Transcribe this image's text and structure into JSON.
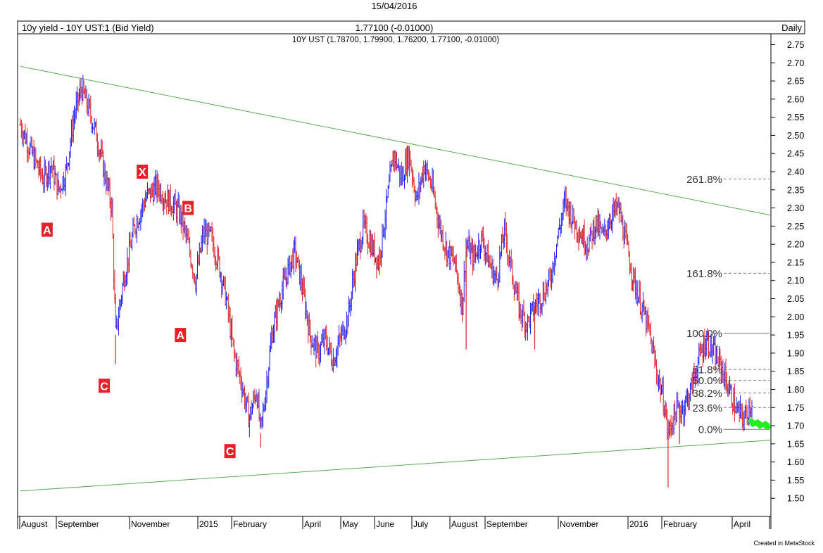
{
  "header": {
    "date": "15/04/2016",
    "instrument": "10y yield - 10Y UST:1 (Bid Yield)",
    "last_value": "1.77100 (-0.01000)",
    "periodicity": "Daily",
    "ohlc_line": "10Y UST (1.78700, 1.79900, 1.76200, 1.77100, -0.01000)"
  },
  "footer": {
    "credit": "Created in MetaStock"
  },
  "colors": {
    "up_bar": "#1a1aff",
    "down_bar": "#e02020",
    "trendline": "#55aa55",
    "fib_line": "#777777",
    "wave_label_bg": "#e8202a",
    "projection_marker": "#22ee22"
  },
  "chart_data": {
    "type": "ohlc-bar",
    "y_axis": {
      "min": 1.45,
      "max": 2.78,
      "ticks": [
        "2.75",
        "2.70",
        "2.65",
        "2.60",
        "2.55",
        "2.50",
        "2.45",
        "2.40",
        "2.35",
        "2.30",
        "2.25",
        "2.20",
        "2.15",
        "2.10",
        "2.05",
        "2.00",
        "1.95",
        "1.90",
        "1.85",
        "1.80",
        "1.75",
        "1.70",
        "1.65",
        "1.60",
        "1.55",
        "1.50"
      ],
      "position": "right"
    },
    "x_axis_labels": [
      "August",
      "September",
      "November",
      "2015",
      "February",
      "April",
      "May",
      "June",
      "July",
      "August",
      "September",
      "November",
      "2016",
      "February",
      "April"
    ],
    "price_path": [
      {
        "t": 0,
        "v": 2.53
      },
      {
        "t": 3,
        "v": 2.45
      },
      {
        "t": 6,
        "v": 2.38
      },
      {
        "t": 8,
        "v": 2.42
      },
      {
        "t": 10,
        "v": 2.35
      },
      {
        "t": 12,
        "v": 2.4
      },
      {
        "t": 14,
        "v": 2.55
      },
      {
        "t": 16,
        "v": 2.63
      },
      {
        "t": 18,
        "v": 2.57
      },
      {
        "t": 20,
        "v": 2.5
      },
      {
        "t": 22,
        "v": 2.4
      },
      {
        "t": 24,
        "v": 2.3
      },
      {
        "t": 25,
        "v": 1.95
      },
      {
        "t": 27,
        "v": 2.1
      },
      {
        "t": 30,
        "v": 2.25
      },
      {
        "t": 33,
        "v": 2.33
      },
      {
        "t": 36,
        "v": 2.36
      },
      {
        "t": 38,
        "v": 2.33
      },
      {
        "t": 40,
        "v": 2.31
      },
      {
        "t": 42,
        "v": 2.28
      },
      {
        "t": 44,
        "v": 2.2
      },
      {
        "t": 46,
        "v": 2.1
      },
      {
        "t": 48,
        "v": 2.23
      },
      {
        "t": 50,
        "v": 2.22
      },
      {
        "t": 52,
        "v": 2.15
      },
      {
        "t": 54,
        "v": 2.05
      },
      {
        "t": 56,
        "v": 1.9
      },
      {
        "t": 58,
        "v": 1.82
      },
      {
        "t": 60,
        "v": 1.72
      },
      {
        "t": 62,
        "v": 1.8
      },
      {
        "t": 63,
        "v": 1.68
      },
      {
        "t": 64,
        "v": 1.76
      },
      {
        "t": 66,
        "v": 1.95
      },
      {
        "t": 68,
        "v": 2.05
      },
      {
        "t": 70,
        "v": 2.12
      },
      {
        "t": 72,
        "v": 2.18
      },
      {
        "t": 74,
        "v": 2.08
      },
      {
        "t": 76,
        "v": 1.95
      },
      {
        "t": 78,
        "v": 1.9
      },
      {
        "t": 80,
        "v": 1.94
      },
      {
        "t": 82,
        "v": 1.88
      },
      {
        "t": 84,
        "v": 1.94
      },
      {
        "t": 86,
        "v": 2.0
      },
      {
        "t": 88,
        "v": 2.15
      },
      {
        "t": 90,
        "v": 2.25
      },
      {
        "t": 92,
        "v": 2.2
      },
      {
        "t": 94,
        "v": 2.15
      },
      {
        "t": 96,
        "v": 2.3
      },
      {
        "t": 98,
        "v": 2.45
      },
      {
        "t": 100,
        "v": 2.38
      },
      {
        "t": 102,
        "v": 2.45
      },
      {
        "t": 104,
        "v": 2.32
      },
      {
        "t": 106,
        "v": 2.42
      },
      {
        "t": 108,
        "v": 2.36
      },
      {
        "t": 110,
        "v": 2.25
      },
      {
        "t": 112,
        "v": 2.18
      },
      {
        "t": 114,
        "v": 2.15
      },
      {
        "t": 116,
        "v": 2.03
      },
      {
        "t": 117,
        "v": 2.2
      },
      {
        "t": 119,
        "v": 2.16
      },
      {
        "t": 121,
        "v": 2.22
      },
      {
        "t": 123,
        "v": 2.15
      },
      {
        "t": 125,
        "v": 2.1
      },
      {
        "t": 127,
        "v": 2.24
      },
      {
        "t": 129,
        "v": 2.12
      },
      {
        "t": 131,
        "v": 2.02
      },
      {
        "t": 133,
        "v": 1.98
      },
      {
        "t": 135,
        "v": 2.03
      },
      {
        "t": 137,
        "v": 2.06
      },
      {
        "t": 139,
        "v": 2.1
      },
      {
        "t": 141,
        "v": 2.22
      },
      {
        "t": 143,
        "v": 2.32
      },
      {
        "t": 145,
        "v": 2.27
      },
      {
        "t": 147,
        "v": 2.23
      },
      {
        "t": 149,
        "v": 2.2
      },
      {
        "t": 151,
        "v": 2.26
      },
      {
        "t": 153,
        "v": 2.22
      },
      {
        "t": 155,
        "v": 2.28
      },
      {
        "t": 157,
        "v": 2.3
      },
      {
        "t": 159,
        "v": 2.2
      },
      {
        "t": 161,
        "v": 2.1
      },
      {
        "t": 163,
        "v": 2.03
      },
      {
        "t": 165,
        "v": 1.96
      },
      {
        "t": 167,
        "v": 1.85
      },
      {
        "t": 169,
        "v": 1.76
      },
      {
        "t": 170,
        "v": 1.68
      },
      {
        "t": 172,
        "v": 1.74
      },
      {
        "t": 174,
        "v": 1.75
      },
      {
        "t": 176,
        "v": 1.8
      },
      {
        "t": 178,
        "v": 1.88
      },
      {
        "t": 180,
        "v": 1.94
      },
      {
        "t": 182,
        "v": 1.9
      },
      {
        "t": 184,
        "v": 1.86
      },
      {
        "t": 186,
        "v": 1.8
      },
      {
        "t": 188,
        "v": 1.74
      },
      {
        "t": 190,
        "v": 1.72
      },
      {
        "t": 192,
        "v": 1.77
      }
    ],
    "spikes": [
      {
        "t": 25,
        "low": 1.87
      },
      {
        "t": 63,
        "low": 1.64
      },
      {
        "t": 117,
        "low": 1.91
      },
      {
        "t": 135,
        "low": 1.91
      },
      {
        "t": 170,
        "low": 1.53
      },
      {
        "t": 173,
        "low": 1.65
      }
    ],
    "trendlines": [
      {
        "name": "upper",
        "from": {
          "t": 0,
          "v": 2.69
        },
        "to": {
          "t": 196,
          "v": 2.28
        }
      },
      {
        "name": "lower",
        "from": {
          "t": 0,
          "v": 1.52
        },
        "to": {
          "t": 196,
          "v": 1.66
        }
      }
    ],
    "wave_labels": [
      {
        "text": "A",
        "t": 7,
        "v": 2.24
      },
      {
        "text": "C",
        "t": 22,
        "v": 1.81
      },
      {
        "text": "X",
        "t": 32,
        "v": 2.4
      },
      {
        "text": "B",
        "t": 44,
        "v": 2.3
      },
      {
        "text": "A",
        "t": 42,
        "v": 1.95
      },
      {
        "text": "C",
        "t": 55,
        "v": 1.63
      }
    ],
    "fib_levels": [
      {
        "label": "261.8%",
        "v": 2.38
      },
      {
        "label": "161.8%",
        "v": 2.12
      },
      {
        "label": "100.0%",
        "v": 1.955
      },
      {
        "label": "61.8%",
        "v": 1.855
      },
      {
        "label": "50.0%",
        "v": 1.825
      },
      {
        "label": "38.2%",
        "v": 1.79
      },
      {
        "label": "23.6%",
        "v": 1.75
      },
      {
        "label": "0.0%",
        "v": 1.69
      }
    ]
  }
}
